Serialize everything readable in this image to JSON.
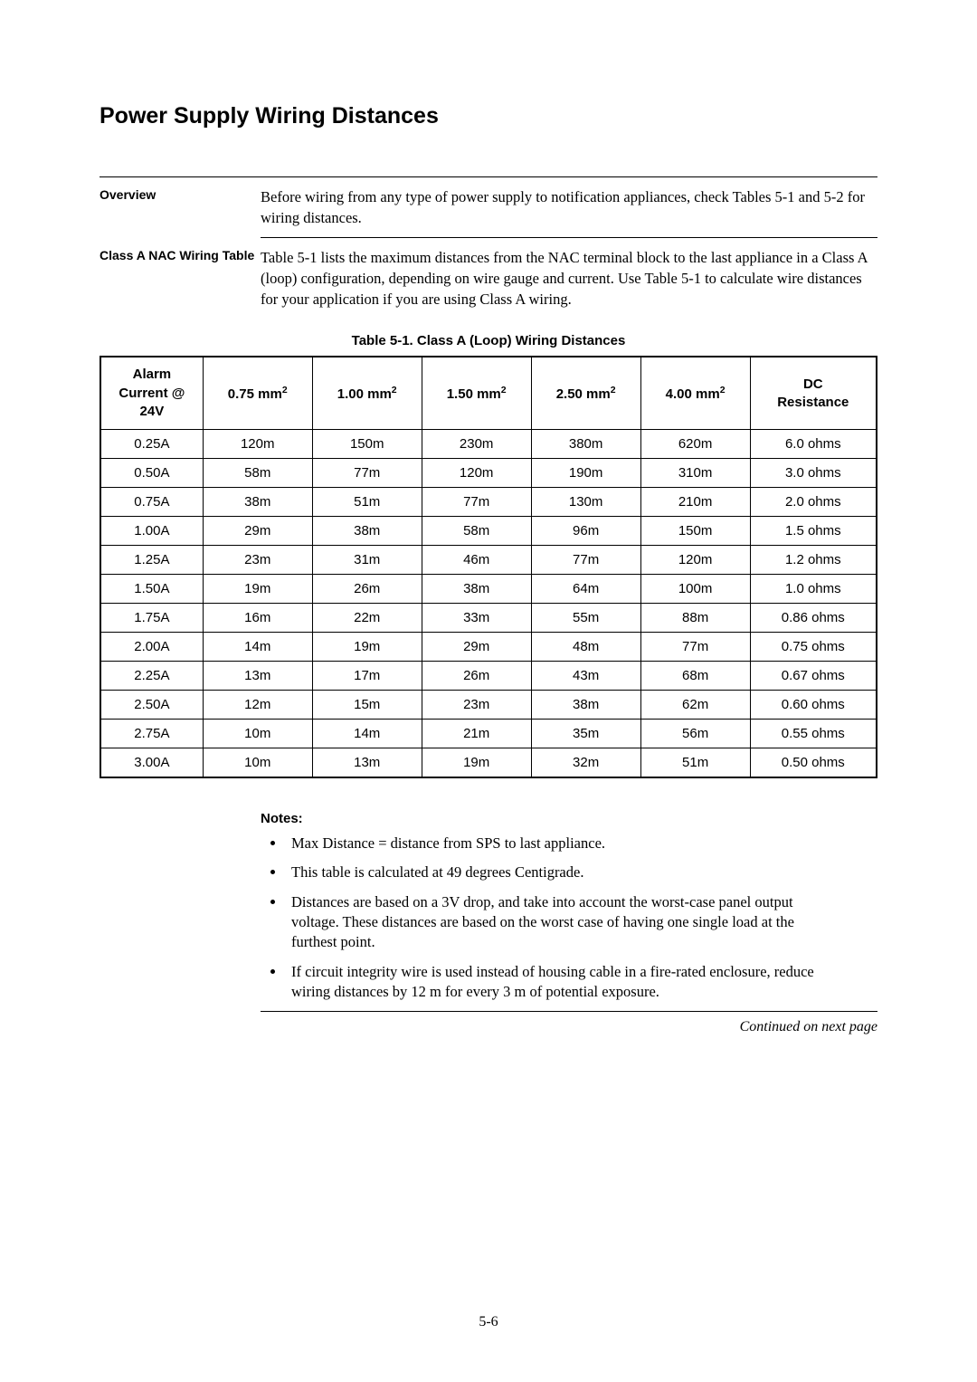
{
  "page_title": "Power Supply Wiring Distances",
  "sections": {
    "overview": {
      "label": "Overview",
      "text": "Before wiring from any type of power supply to notification appliances, check Tables 5-1 and 5-2 for wiring distances."
    },
    "classA": {
      "label": "Class A NAC Wiring Table",
      "text": "Table 5-1 lists the maximum distances from the NAC terminal block to the last appliance in a Class A (loop) configuration, depending on wire gauge and current. Use Table 5-1 to calculate wire distances for your application if you are using Class A wiring."
    }
  },
  "table": {
    "caption": "Table 5-1. Class A (Loop) Wiring Distances",
    "columns": {
      "c0_line1": "Alarm",
      "c0_line2": "Current @",
      "c0_line3": "24V",
      "c1_val": "0.75 mm",
      "c1_sup": "2",
      "c2_val": "1.00 mm",
      "c2_sup": "2",
      "c3_val": "1.50 mm",
      "c3_sup": "2",
      "c4_val": "2.50 mm",
      "c4_sup": "2",
      "c5_val": "4.00 mm",
      "c5_sup": "2",
      "c6_line1": "DC",
      "c6_line2": "Resistance"
    },
    "rows": [
      [
        "0.25A",
        "120m",
        "150m",
        "230m",
        "380m",
        "620m",
        "6.0 ohms"
      ],
      [
        "0.50A",
        "58m",
        "77m",
        "120m",
        "190m",
        "310m",
        "3.0 ohms"
      ],
      [
        "0.75A",
        "38m",
        "51m",
        "77m",
        "130m",
        "210m",
        "2.0 ohms"
      ],
      [
        "1.00A",
        "29m",
        "38m",
        "58m",
        "96m",
        "150m",
        "1.5 ohms"
      ],
      [
        "1.25A",
        "23m",
        "31m",
        "46m",
        "77m",
        "120m",
        "1.2 ohms"
      ],
      [
        "1.50A",
        "19m",
        "26m",
        "38m",
        "64m",
        "100m",
        "1.0 ohms"
      ],
      [
        "1.75A",
        "16m",
        "22m",
        "33m",
        "55m",
        "88m",
        "0.86 ohms"
      ],
      [
        "2.00A",
        "14m",
        "19m",
        "29m",
        "48m",
        "77m",
        "0.75 ohms"
      ],
      [
        "2.25A",
        "13m",
        "17m",
        "26m",
        "43m",
        "68m",
        "0.67 ohms"
      ],
      [
        "2.50A",
        "12m",
        "15m",
        "23m",
        "38m",
        "62m",
        "0.60 ohms"
      ],
      [
        "2.75A",
        "10m",
        "14m",
        "21m",
        "35m",
        "56m",
        "0.55 ohms"
      ],
      [
        "3.00A",
        "10m",
        "13m",
        "19m",
        "32m",
        "51m",
        "0.50 ohms"
      ]
    ]
  },
  "notes": {
    "heading": "Notes:",
    "items": [
      "Max Distance = distance from SPS to last appliance.",
      "This table is calculated at 49 degrees Centigrade.",
      "Distances are based on a 3V drop, and take into account the worst-case panel output voltage.  These distances are based on the worst case of having one single load at the furthest point.",
      "If circuit integrity wire is used instead of housing cable in a fire-rated enclosure, reduce wiring distances by 12 m for every 3 m of potential exposure."
    ]
  },
  "continued_text": "Continued on next page",
  "page_number": "5-6",
  "style": {
    "colors": {
      "text": "#000000",
      "background": "#ffffff",
      "border": "#000000"
    },
    "fonts": {
      "body": "Times New Roman",
      "heading": "Arial"
    },
    "font_sizes_pt": {
      "title": 18,
      "section_label": 10,
      "body": 12,
      "table_caption": 11,
      "table_cell": 11,
      "notes_heading": 11,
      "page_number": 12
    },
    "column_widths_pct": [
      13.2,
      14.1,
      14.1,
      14.1,
      14.1,
      14.1,
      16.3
    ]
  }
}
